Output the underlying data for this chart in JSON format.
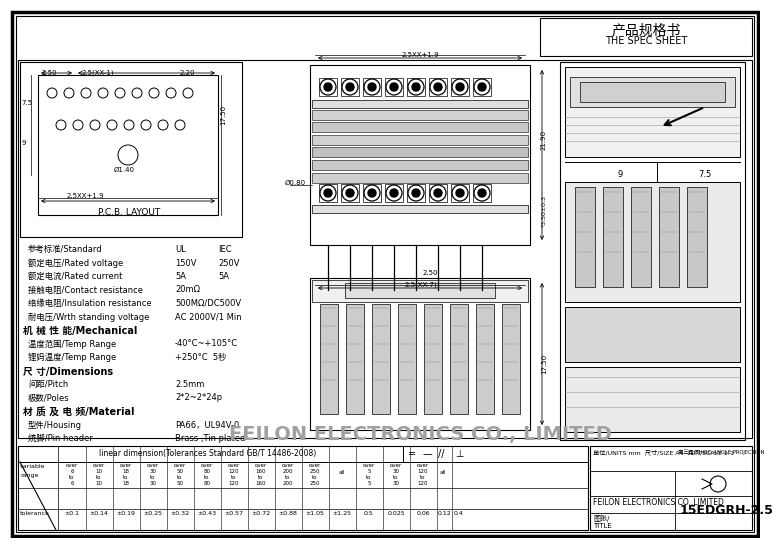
{
  "title_cn": "产品规格书",
  "title_en": "THE SPEC SHEET",
  "bg_color": "#ffffff",
  "border_color": "#000000",
  "specs": [
    [
      "参考标准/Standard",
      "UL",
      "IEC",
      false
    ],
    [
      "额定电压/Rated voltage",
      "150V",
      "250V",
      false
    ],
    [
      "额定电流/Rated current",
      "5A",
      "5A",
      false
    ],
    [
      "接触电阻/Contact resistance",
      "20mΩ",
      "",
      false
    ],
    [
      "络缘电阻/Insulation resistance",
      "500MΩ/DC500V",
      "",
      false
    ],
    [
      "耐电压/Wrth standing voltage",
      "AC 2000V/1 Min",
      "",
      false
    ],
    [
      "机 械 性 能/Mechanical",
      "",
      "",
      true
    ],
    [
      "温度范围/Temp Range",
      "-40°C~+105°C",
      "",
      false
    ],
    [
      "锂妈温度/Temp Range",
      "+250°C  5秒",
      "",
      false
    ],
    [
      "尺 寸/Dimensions",
      "",
      "",
      true
    ],
    [
      "间距/Pitch",
      "2.5mm",
      "",
      false
    ],
    [
      "极数/Poles",
      "2*2~2*24p",
      "",
      false
    ],
    [
      "材 质 及 电 频/Material",
      "",
      "",
      true
    ],
    [
      "型件/Housing",
      "PA66，UL94V-0",
      "",
      false
    ],
    [
      "焼脚/Pin header",
      "Brass ,Tin plated",
      "",
      false
    ]
  ],
  "pcb_label": "P.C.B. LAYOUT",
  "company": "FEILON ELECTRONICS CO.,LIMITED",
  "title_part": "15EDGRH-2.5",
  "tol_header": "linear dimension(Tolerances Standard GB/T 14486-2008)",
  "tol_values": [
    "±0.1",
    "±0.14",
    "±0.19",
    "±0.25",
    "±0.32",
    "±0.43",
    "±0.57",
    "±0.72",
    "±0.88",
    "±1.05",
    "±1.25",
    "0.5",
    "0.025",
    "0.06",
    "0.12",
    "0.4"
  ]
}
